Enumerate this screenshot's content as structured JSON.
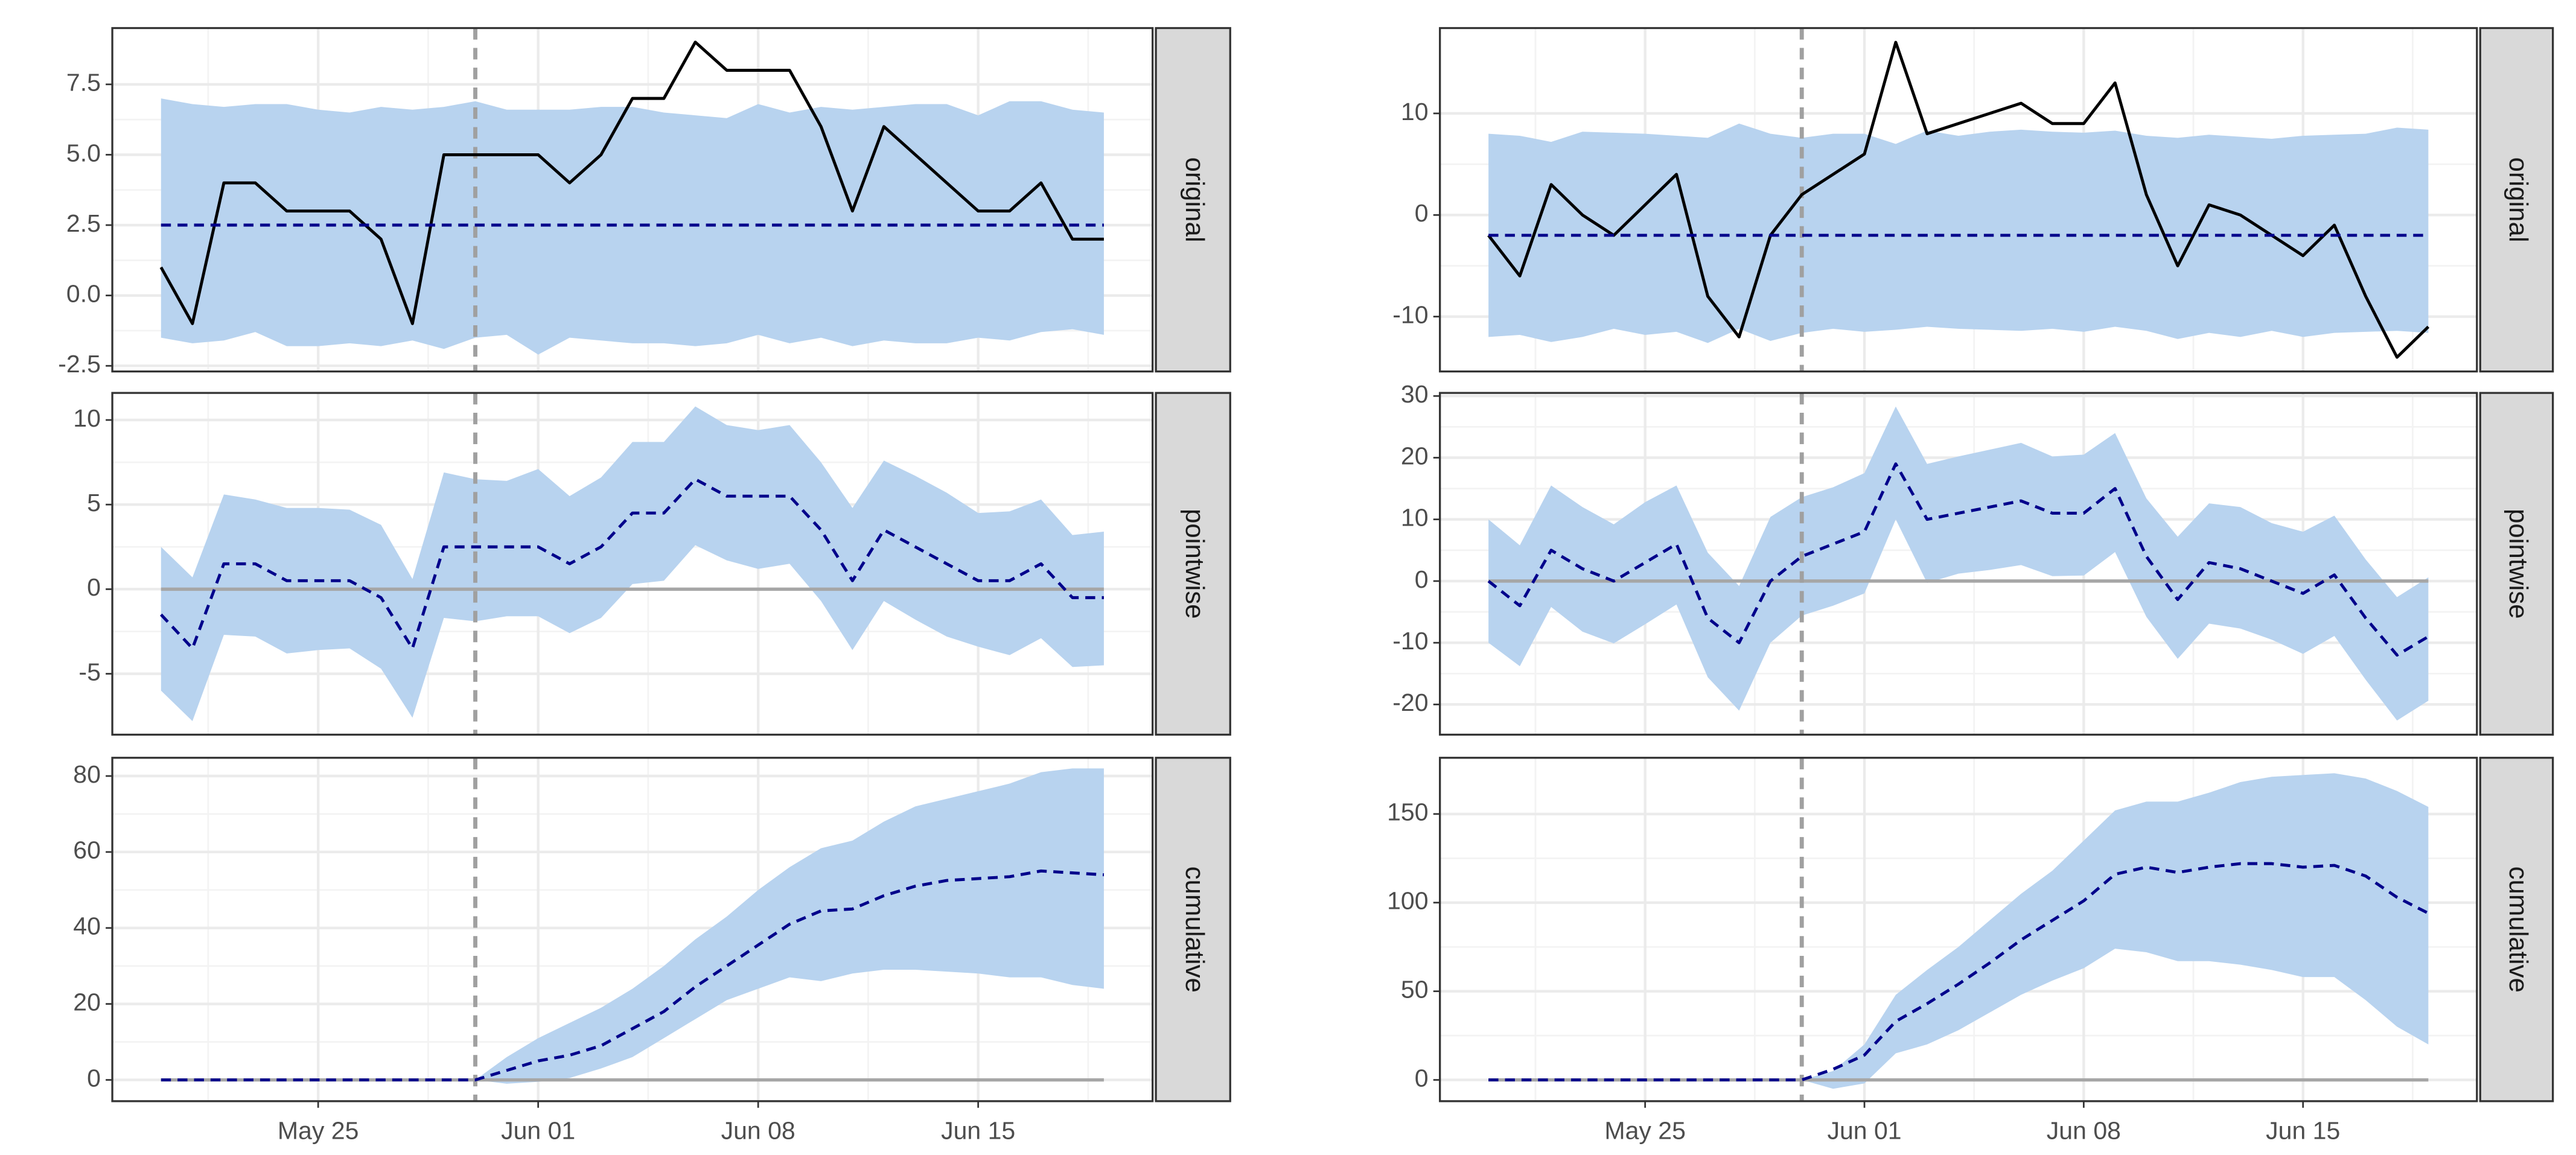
{
  "chart_data": [
    {
      "type": "line",
      "x": [
        "May 20",
        "May 21",
        "May 22",
        "May 23",
        "May 24",
        "May 25",
        "May 26",
        "May 27",
        "May 28",
        "May 29",
        "May 30",
        "May 31",
        "Jun 01",
        "Jun 02",
        "Jun 03",
        "Jun 04",
        "Jun 05",
        "Jun 06",
        "Jun 07",
        "Jun 08",
        "Jun 09",
        "Jun 10",
        "Jun 11",
        "Jun 12",
        "Jun 13",
        "Jun 14",
        "Jun 15",
        "Jun 16",
        "Jun 17",
        "Jun 18",
        "Jun 19"
      ],
      "xticks": [
        "May 25",
        "Jun 01",
        "Jun 08",
        "Jun 15"
      ],
      "intervention": "May 30",
      "intervention_color": "#a0a0a0",
      "grid": true,
      "panels": [
        {
          "facet": "original",
          "ylim": [
            -2.7,
            9.5
          ],
          "yticks": [
            -2.5,
            {
              "value": 0,
              "label": "0.0"
            },
            2.5,
            {
              "value": 5,
              "label": "5.0"
            },
            7.5
          ],
          "series": [
            {
              "color": "#000000",
              "style": "solid",
              "values": [
                1,
                -1,
                4,
                4,
                3,
                3,
                3,
                2,
                -1,
                5,
                5,
                5,
                5,
                4,
                5,
                7,
                7,
                9,
                8,
                8,
                8,
                6,
                3,
                6,
                5,
                4,
                3,
                3,
                4,
                2,
                2
              ]
            },
            {
              "color": "#00008b",
              "style": "dashed",
              "band_color": "#b8d3ef",
              "values": [
                2.5,
                2.5,
                2.5,
                2.5,
                2.5,
                2.5,
                2.5,
                2.5,
                2.5,
                2.5,
                2.5,
                2.5,
                2.5,
                2.5,
                2.5,
                2.5,
                2.5,
                2.5,
                2.5,
                2.5,
                2.5,
                2.5,
                2.5,
                2.5,
                2.5,
                2.5,
                2.5,
                2.5,
                2.5,
                2.5,
                2.5
              ],
              "band_upper": [
                7,
                6.8,
                6.7,
                6.8,
                6.8,
                6.6,
                6.5,
                6.7,
                6.6,
                6.7,
                6.9,
                6.6,
                6.6,
                6.6,
                6.7,
                6.7,
                6.5,
                6.4,
                6.3,
                6.8,
                6.5,
                6.7,
                6.6,
                6.7,
                6.8,
                6.8,
                6.4,
                6.9,
                6.9,
                6.6,
                6.5
              ],
              "band_lower": [
                -1.5,
                -1.7,
                -1.6,
                -1.3,
                -1.8,
                -1.8,
                -1.7,
                -1.8,
                -1.6,
                -1.9,
                -1.5,
                -1.4,
                -2.1,
                -1.5,
                -1.6,
                -1.7,
                -1.7,
                -1.8,
                -1.7,
                -1.4,
                -1.7,
                -1.5,
                -1.8,
                -1.6,
                -1.7,
                -1.7,
                -1.5,
                -1.6,
                -1.3,
                -1.2,
                -1.4
              ]
            }
          ]
        },
        {
          "facet": "pointwise",
          "ylim": [
            -8.6,
            11.6
          ],
          "yticks": [
            -5,
            0,
            5,
            10
          ],
          "hline": 0,
          "hline_color": "#a6a6a6",
          "series": [
            {
              "color": "#00008b",
              "style": "dashed",
              "band_color": "#b8d3ef",
              "values": [
                -1.5,
                -3.5,
                1.5,
                1.5,
                0.5,
                0.5,
                0.5,
                -0.5,
                -3.5,
                2.5,
                2.5,
                2.5,
                2.5,
                1.5,
                2.5,
                4.5,
                4.5,
                6.5,
                5.5,
                5.5,
                5.5,
                3.5,
                0.5,
                3.5,
                2.5,
                1.5,
                0.5,
                0.5,
                1.5,
                -0.5,
                -0.5
              ],
              "band_upper": [
                2.5,
                0.7,
                5.6,
                5.3,
                4.8,
                4.8,
                4.7,
                3.8,
                0.6,
                6.9,
                6.5,
                6.4,
                7.1,
                5.5,
                6.6,
                8.7,
                8.7,
                10.8,
                9.7,
                9.4,
                9.7,
                7.5,
                4.8,
                7.6,
                6.7,
                5.7,
                4.5,
                4.6,
                5.3,
                3.2,
                3.4
              ],
              "band_lower": [
                -6,
                -7.8,
                -2.7,
                -2.8,
                -3.8,
                -3.6,
                -3.5,
                -4.7,
                -7.6,
                -1.7,
                -1.9,
                -1.6,
                -1.6,
                -2.6,
                -1.7,
                0.3,
                0.5,
                2.6,
                1.7,
                1.2,
                1.5,
                -0.7,
                -3.6,
                -0.7,
                -1.8,
                -2.8,
                -3.4,
                -3.9,
                -2.9,
                -4.6,
                -4.5
              ]
            }
          ]
        },
        {
          "facet": "cumulative",
          "ylim": [
            -5.6,
            84.8
          ],
          "yticks": [
            0,
            20,
            40,
            60,
            80
          ],
          "hline": 0,
          "hline_color": "#a6a6a6",
          "series": [
            {
              "color": "#00008b",
              "style": "dashed",
              "band_color": "#b8d3ef",
              "values": [
                0,
                0,
                0,
                0,
                0,
                0,
                0,
                0,
                0,
                0,
                0,
                2.5,
                5,
                6.5,
                9,
                13.5,
                18,
                24.5,
                30,
                35.5,
                41,
                44.5,
                45,
                48.5,
                51,
                52.5,
                53,
                53.5,
                55,
                54.5,
                54
              ],
              "band_upper": [
                0,
                0,
                0,
                0,
                0,
                0,
                0,
                0,
                0,
                0,
                0,
                6,
                11,
                15,
                19,
                24,
                30,
                37,
                43,
                50,
                56,
                61,
                63,
                68,
                72,
                74,
                76,
                78,
                81,
                82,
                82
              ],
              "band_lower": [
                0,
                0,
                0,
                0,
                0,
                0,
                0,
                0,
                0,
                0,
                0,
                -1,
                -0.5,
                0.5,
                3,
                6,
                11,
                16,
                21,
                24,
                27,
                26,
                28,
                29,
                29,
                28.5,
                28,
                27,
                27,
                25,
                24
              ]
            }
          ]
        }
      ]
    },
    {
      "type": "line",
      "x": [
        "May 20",
        "May 21",
        "May 22",
        "May 23",
        "May 24",
        "May 25",
        "May 26",
        "May 27",
        "May 28",
        "May 29",
        "May 30",
        "May 31",
        "Jun 01",
        "Jun 02",
        "Jun 03",
        "Jun 04",
        "Jun 05",
        "Jun 06",
        "Jun 07",
        "Jun 08",
        "Jun 09",
        "Jun 10",
        "Jun 11",
        "Jun 12",
        "Jun 13",
        "Jun 14",
        "Jun 15",
        "Jun 16",
        "Jun 17",
        "Jun 18",
        "Jun 19"
      ],
      "xticks": [
        "May 25",
        "Jun 01",
        "Jun 08",
        "Jun 15"
      ],
      "intervention": "May 30",
      "intervention_color": "#a0a0a0",
      "grid": true,
      "panels": [
        {
          "facet": "original",
          "ylim": [
            -15.4,
            18.4
          ],
          "yticks": [
            -10,
            0,
            10
          ],
          "series": [
            {
              "color": "#000000",
              "style": "solid",
              "values": [
                -2,
                -6,
                3,
                0,
                -2,
                1,
                4,
                -8,
                -12,
                -2,
                2,
                4,
                6,
                17,
                8,
                9,
                10,
                11,
                9,
                9,
                13,
                2,
                -5,
                1,
                0,
                -2,
                -4,
                -1,
                -8,
                -14,
                -11
              ]
            },
            {
              "color": "#00008b",
              "style": "dashed",
              "band_color": "#b8d3ef",
              "values": [
                -2,
                -2,
                -2,
                -2,
                -2,
                -2,
                -2,
                -2,
                -2,
                -2,
                -2,
                -2,
                -2,
                -2,
                -2,
                -2,
                -2,
                -2,
                -2,
                -2,
                -2,
                -2,
                -2,
                -2,
                -2,
                -2,
                -2,
                -2,
                -2,
                -2,
                -2
              ],
              "band_upper": [
                8,
                7.8,
                7.2,
                8.2,
                8.1,
                8,
                7.8,
                7.6,
                9,
                8,
                7.6,
                8,
                8,
                7,
                8.3,
                7.8,
                8.2,
                8.4,
                8.2,
                8.1,
                8.3,
                7.8,
                7.6,
                7.9,
                7.7,
                7.5,
                7.8,
                7.9,
                8,
                8.6,
                8.4
              ],
              "band_lower": [
                -12,
                -11.8,
                -12.5,
                -12,
                -11.2,
                -11.8,
                -11.5,
                -12.6,
                -11.2,
                -12.4,
                -11.6,
                -11.2,
                -11.5,
                -11.3,
                -11,
                -11.2,
                -11.3,
                -11.4,
                -11.2,
                -11.5,
                -11,
                -11.4,
                -12.2,
                -11.6,
                -12,
                -11.4,
                -12,
                -11.6,
                -11.5,
                -11.4,
                -11.6
              ]
            }
          ]
        },
        {
          "facet": "pointwise",
          "ylim": [
            -24.9,
            30.5
          ],
          "yticks": [
            -20,
            -10,
            0,
            10,
            20,
            30
          ],
          "hline": 0,
          "hline_color": "#a6a6a6",
          "series": [
            {
              "color": "#00008b",
              "style": "dashed",
              "band_color": "#b8d3ef",
              "values": [
                0,
                -4,
                5,
                2,
                0,
                3,
                6,
                -6,
                -10,
                0,
                4,
                6,
                8,
                19,
                10,
                11,
                12,
                13,
                11,
                11,
                15,
                4,
                -3,
                3,
                2,
                0,
                -2,
                1,
                -6,
                -12,
                -9
              ],
              "band_upper": [
                10,
                5.8,
                15.5,
                12,
                9.2,
                12.8,
                15.5,
                4.6,
                -0.8,
                10.4,
                13.6,
                15.2,
                17.5,
                28.3,
                19,
                20.2,
                21.3,
                22.4,
                20.2,
                20.5,
                24,
                13.4,
                7.2,
                12.6,
                12,
                9.4,
                8,
                10.6,
                3.5,
                -2.6,
                0.6
              ],
              "band_lower": [
                -10,
                -13.8,
                -4.2,
                -8.2,
                -10.1,
                -7,
                -3.8,
                -15.6,
                -21,
                -10,
                -5.6,
                -4,
                -2,
                10,
                -0.3,
                1.2,
                1.8,
                2.6,
                0.8,
                0.9,
                4.7,
                -5.8,
                -12.6,
                -6.9,
                -7.7,
                -9.5,
                -11.8,
                -8.9,
                -16,
                -22.6,
                -19.4
              ]
            }
          ]
        },
        {
          "facet": "cumulative",
          "ylim": [
            -12,
            181.7
          ],
          "yticks": [
            0,
            50,
            100,
            150
          ],
          "hline": 0,
          "hline_color": "#a6a6a6",
          "series": [
            {
              "color": "#00008b",
              "style": "dashed",
              "band_color": "#b8d3ef",
              "values": [
                0,
                0,
                0,
                0,
                0,
                0,
                0,
                0,
                0,
                0,
                0,
                6,
                14,
                33,
                43,
                54,
                66,
                79,
                90,
                101,
                116,
                120,
                117,
                120,
                122,
                122,
                120,
                121,
                115,
                103,
                94
              ],
              "band_upper": [
                0,
                0,
                0,
                0,
                0,
                0,
                0,
                0,
                0,
                0,
                0,
                5,
                20,
                48,
                62,
                75,
                90,
                105,
                118,
                135,
                152,
                157,
                157,
                162,
                168,
                171,
                172,
                173,
                170,
                163,
                154
              ],
              "band_lower": [
                0,
                0,
                0,
                0,
                0,
                0,
                0,
                0,
                0,
                0,
                0,
                -5,
                -2,
                15,
                20,
                28,
                38,
                48,
                56,
                63,
                74,
                72,
                67,
                67,
                65,
                62,
                58,
                58,
                45,
                30,
                20
              ]
            }
          ]
        }
      ]
    }
  ]
}
